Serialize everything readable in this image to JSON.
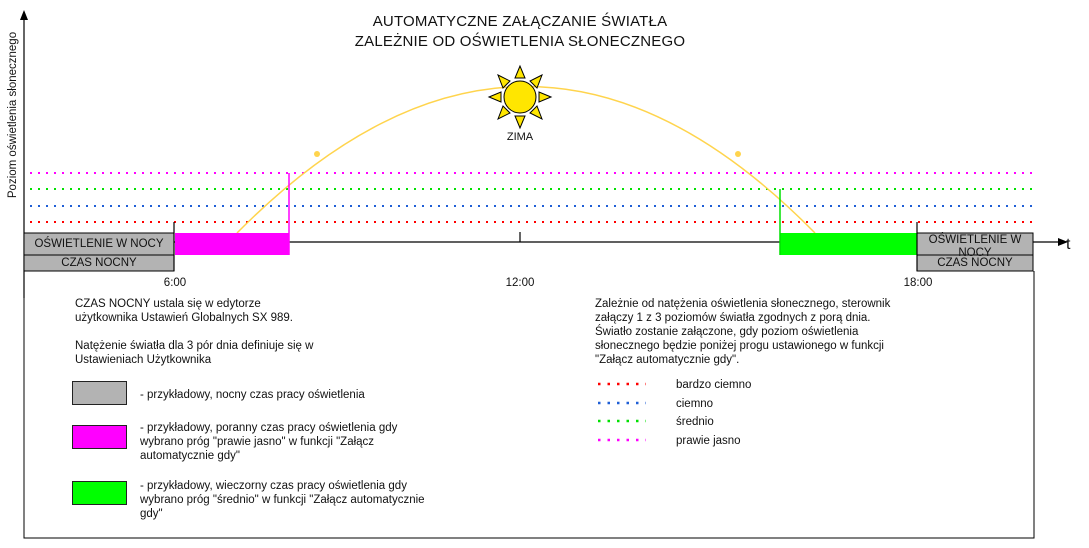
{
  "title": {
    "line1": "AUTOMATYCZNE ZAŁĄCZANIE ŚWIATŁA",
    "line2": "ZALEŻNIE OD OŚWIETLENIA SŁONECZNEGO"
  },
  "axes": {
    "y_label": "Poziom oświetlenia słonecznego",
    "x_label": "t",
    "ticks": [
      "6:00",
      "12:00",
      "18:00"
    ]
  },
  "season_label": "ZIMA",
  "bars": {
    "left_light": "OŚWIETLENIE W NOCY",
    "left_night": "CZAS NOCNY",
    "right_light": "OŚWIETLENIE W NOCY",
    "right_night": "CZAS NOCNY"
  },
  "notes": {
    "czas_nocny": "CZAS NOCNY ustala się w edytorze użytkownika Ustawień Globalnych SX 989.",
    "natezenie": "Natężenie światła dla 3 pór dnia definiuje się w Ustawieniach Użytkownika",
    "right_desc": "Zależnie od natężenia oświetlenia słonecznego, sterownik załączy 1 z 3 poziomów światła zgodnych z porą dnia. Światło zostanie załączone, gdy poziom oświetlenia słonecznego będzie poniżej progu ustawionego w funkcji \"Załącz automatycznie gdy\"."
  },
  "legend_boxes": [
    {
      "color": "#b3b3b3",
      "text": "- przykładowy, nocny czas pracy oświetlenia"
    },
    {
      "color": "#ff00ff",
      "text": "- przykładowy, poranny czas pracy oświetlenia gdy wybrano próg \"prawie jasno\" w funkcji \"Załącz automatycznie gdy\""
    },
    {
      "color": "#00ff00",
      "text": "- przykładowy, wieczorny czas pracy oświetlenia gdy wybrano próg \"średnio\" w funkcji \"Załącz automatycznie gdy\""
    }
  ],
  "thresholds": [
    {
      "label": "bardzo ciemno",
      "color": "#ff0000"
    },
    {
      "label": "ciemno",
      "color": "#1f5fd6"
    },
    {
      "label": "średnio",
      "color": "#00e000"
    },
    {
      "label": "prawie jasno",
      "color": "#ff00ff"
    }
  ],
  "colors": {
    "night": "#b3b3b3",
    "morning": "#ff00ff",
    "evening": "#00ff00",
    "sun_arc": "#ffd44d",
    "sun": "#ffe600"
  }
}
